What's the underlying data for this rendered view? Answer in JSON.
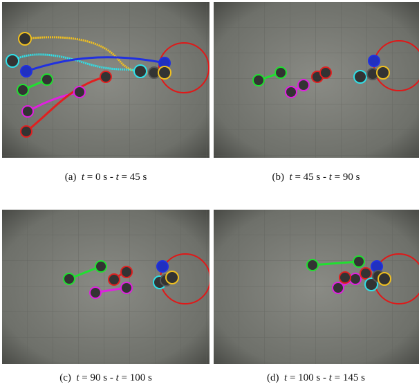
{
  "figure": {
    "panels": [
      {
        "label": "(a)",
        "caption": "t = 0 s - t = 45 s"
      },
      {
        "label": "(b)",
        "caption": "t = 45 s - t = 90 s"
      },
      {
        "label": "(c)",
        "caption": "t = 90 s - t = 100 s"
      },
      {
        "label": "(d)",
        "caption": "t = 100 s - t = 145 s"
      }
    ]
  }
}
